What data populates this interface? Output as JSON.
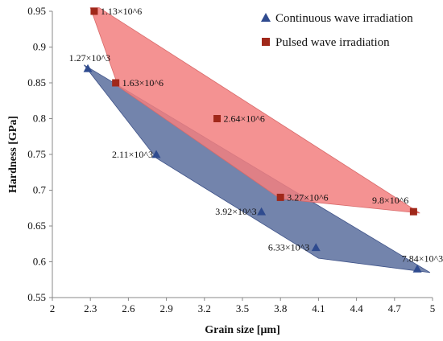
{
  "chart_data": {
    "type": "scatter",
    "xlabel": "Grain size [μm]",
    "ylabel": "Hardness [GPa]",
    "xlim": [
      2,
      5
    ],
    "ylim": [
      0.55,
      0.95
    ],
    "xticks": [
      "2",
      "2.3",
      "2.6",
      "2.9",
      "3.2",
      "3.5",
      "3.8",
      "4.1",
      "4.4",
      "4.7",
      "5"
    ],
    "yticks": [
      "0.55",
      "0.6",
      "0.65",
      "0.7",
      "0.75",
      "0.8",
      "0.85",
      "0.9",
      "0.95"
    ],
    "grid": false,
    "legend_position": "top-right",
    "series": [
      {
        "name": "Continuous wave irradiation",
        "marker": "triangle",
        "color": "#2f4b8f",
        "hull_fill": "#5a6e9e",
        "points": [
          {
            "x": 2.28,
            "y": 0.87,
            "label": "1.27×10^3"
          },
          {
            "x": 2.82,
            "y": 0.75,
            "label": "2.11×10^3"
          },
          {
            "x": 3.65,
            "y": 0.67,
            "label": "3.92×10^3"
          },
          {
            "x": 4.08,
            "y": 0.62,
            "label": "6.33×10^3"
          },
          {
            "x": 4.88,
            "y": 0.59,
            "label": "7.84×10^3"
          }
        ]
      },
      {
        "name": "Pulsed wave irradiation",
        "marker": "square",
        "color": "#a0281a",
        "hull_fill": "#f27f7f",
        "points": [
          {
            "x": 2.33,
            "y": 0.95,
            "label": "1.13×10^6"
          },
          {
            "x": 2.5,
            "y": 0.85,
            "label": "1.63×10^6"
          },
          {
            "x": 3.3,
            "y": 0.8,
            "label": "2.64×10^6"
          },
          {
            "x": 3.8,
            "y": 0.69,
            "label": "3.27×10^6"
          },
          {
            "x": 4.85,
            "y": 0.67,
            "label": "9.8×10^6"
          }
        ]
      }
    ]
  }
}
